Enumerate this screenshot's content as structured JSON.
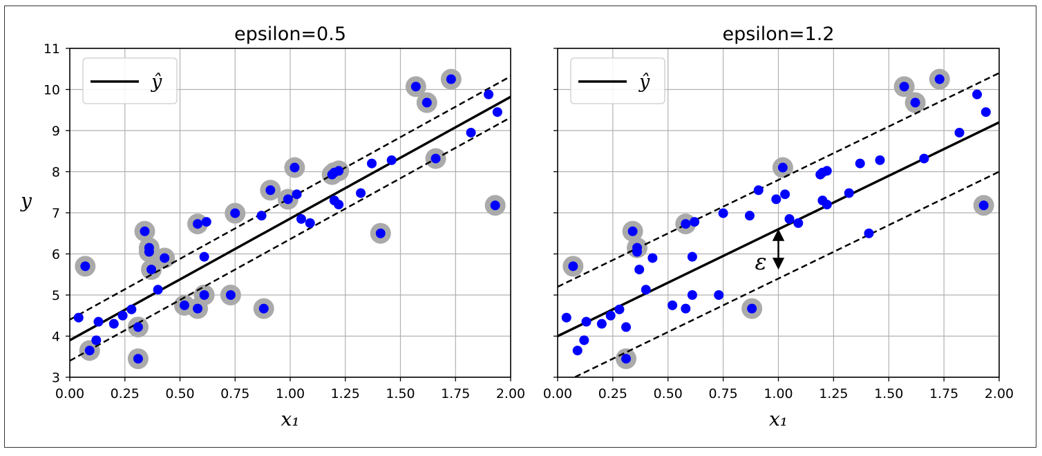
{
  "chart_data": [
    {
      "type": "scatter",
      "title": "epsilon=0.5",
      "xlabel": "x₁",
      "ylabel": "y",
      "xlim": [
        0,
        2
      ],
      "ylim": [
        3,
        11
      ],
      "xticks": [
        "0.00",
        "0.25",
        "0.50",
        "0.75",
        "1.00",
        "1.25",
        "1.50",
        "1.75",
        "2.00"
      ],
      "yticks": [
        "3",
        "4",
        "5",
        "6",
        "7",
        "8",
        "9",
        "10",
        "11"
      ],
      "grid": true,
      "legend": {
        "placement": "top-left",
        "label": "ŷ"
      },
      "regression_line": {
        "intercept": 3.9,
        "slope": 2.96,
        "style": "solid"
      },
      "margin_lines": [
        {
          "intercept": 4.4,
          "slope": 2.96,
          "style": "dashed"
        },
        {
          "intercept": 3.4,
          "slope": 2.96,
          "style": "dashed"
        }
      ],
      "points": {
        "x": [
          0.04,
          0.07,
          0.09,
          0.12,
          0.13,
          0.2,
          0.24,
          0.28,
          0.31,
          0.31,
          0.34,
          0.36,
          0.36,
          0.37,
          0.4,
          0.43,
          0.52,
          0.58,
          0.58,
          0.61,
          0.61,
          0.62,
          0.73,
          0.75,
          0.87,
          0.88,
          0.91,
          0.99,
          1.02,
          1.03,
          1.05,
          1.09,
          1.19,
          1.2,
          1.2,
          1.22,
          1.22,
          1.32,
          1.37,
          1.41,
          1.46,
          1.57,
          1.62,
          1.66,
          1.73,
          1.82,
          1.9,
          1.93,
          1.94
        ],
        "y": [
          4.45,
          5.7,
          3.65,
          3.9,
          4.35,
          4.3,
          4.5,
          4.65,
          4.22,
          3.45,
          6.55,
          6.15,
          6.05,
          5.62,
          5.13,
          5.9,
          4.75,
          4.67,
          6.73,
          5.0,
          5.93,
          6.78,
          5.0,
          6.99,
          6.93,
          4.67,
          7.55,
          7.33,
          8.1,
          7.45,
          6.85,
          6.75,
          7.93,
          7.3,
          7.98,
          7.2,
          8.02,
          7.48,
          8.2,
          6.5,
          8.28,
          10.07,
          9.68,
          8.32,
          10.25,
          8.95,
          9.88,
          7.18,
          9.45
        ]
      },
      "support_vectors_highlighted": [
        1,
        2,
        8,
        9,
        10,
        11,
        12,
        13,
        15,
        16,
        17,
        18,
        19,
        22,
        23,
        25,
        26,
        27,
        28,
        32,
        34,
        36,
        39,
        41,
        42,
        43,
        44,
        47
      ]
    },
    {
      "type": "scatter",
      "title": "epsilon=1.2",
      "xlabel": "x₁",
      "ylabel": "",
      "xlim": [
        0,
        2
      ],
      "ylim": [
        3,
        11
      ],
      "xticks": [
        "0.00",
        "0.25",
        "0.50",
        "0.75",
        "1.00",
        "1.25",
        "1.50",
        "1.75",
        "2.00"
      ],
      "grid": true,
      "legend": {
        "placement": "top-left",
        "label": "ŷ"
      },
      "annotation": {
        "text": "ε",
        "x": 1.0
      },
      "regression_line": {
        "intercept": 4.0,
        "slope": 2.6,
        "style": "solid"
      },
      "margin_lines": [
        {
          "intercept": 5.2,
          "slope": 2.6,
          "style": "dashed"
        },
        {
          "intercept": 2.8,
          "slope": 2.6,
          "style": "dashed"
        }
      ],
      "points": {
        "x": [
          0.04,
          0.07,
          0.09,
          0.12,
          0.13,
          0.2,
          0.24,
          0.28,
          0.31,
          0.31,
          0.34,
          0.36,
          0.36,
          0.37,
          0.4,
          0.43,
          0.52,
          0.58,
          0.58,
          0.61,
          0.61,
          0.62,
          0.73,
          0.75,
          0.87,
          0.88,
          0.91,
          0.99,
          1.02,
          1.03,
          1.05,
          1.09,
          1.19,
          1.2,
          1.2,
          1.22,
          1.22,
          1.32,
          1.37,
          1.41,
          1.46,
          1.57,
          1.62,
          1.66,
          1.73,
          1.82,
          1.9,
          1.93,
          1.94
        ],
        "y": [
          4.45,
          5.7,
          3.65,
          3.9,
          4.35,
          4.3,
          4.5,
          4.65,
          4.22,
          3.45,
          6.55,
          6.15,
          6.05,
          5.62,
          5.13,
          5.9,
          4.75,
          4.67,
          6.73,
          5.0,
          5.93,
          6.78,
          5.0,
          6.99,
          6.93,
          4.67,
          7.55,
          7.33,
          8.1,
          7.45,
          6.85,
          6.75,
          7.93,
          7.3,
          7.98,
          7.2,
          8.02,
          7.48,
          8.2,
          6.5,
          8.28,
          10.07,
          9.68,
          8.32,
          10.25,
          8.95,
          9.88,
          7.18,
          9.45
        ]
      },
      "support_vectors_highlighted": [
        1,
        9,
        10,
        11,
        18,
        25,
        28,
        41,
        42,
        44,
        47
      ]
    }
  ],
  "colors": {
    "point": "#0000ff",
    "highlight": "#aaaaaa",
    "grid": "#b0b0b0",
    "line": "#000000",
    "legend_border": "#cccccc"
  }
}
